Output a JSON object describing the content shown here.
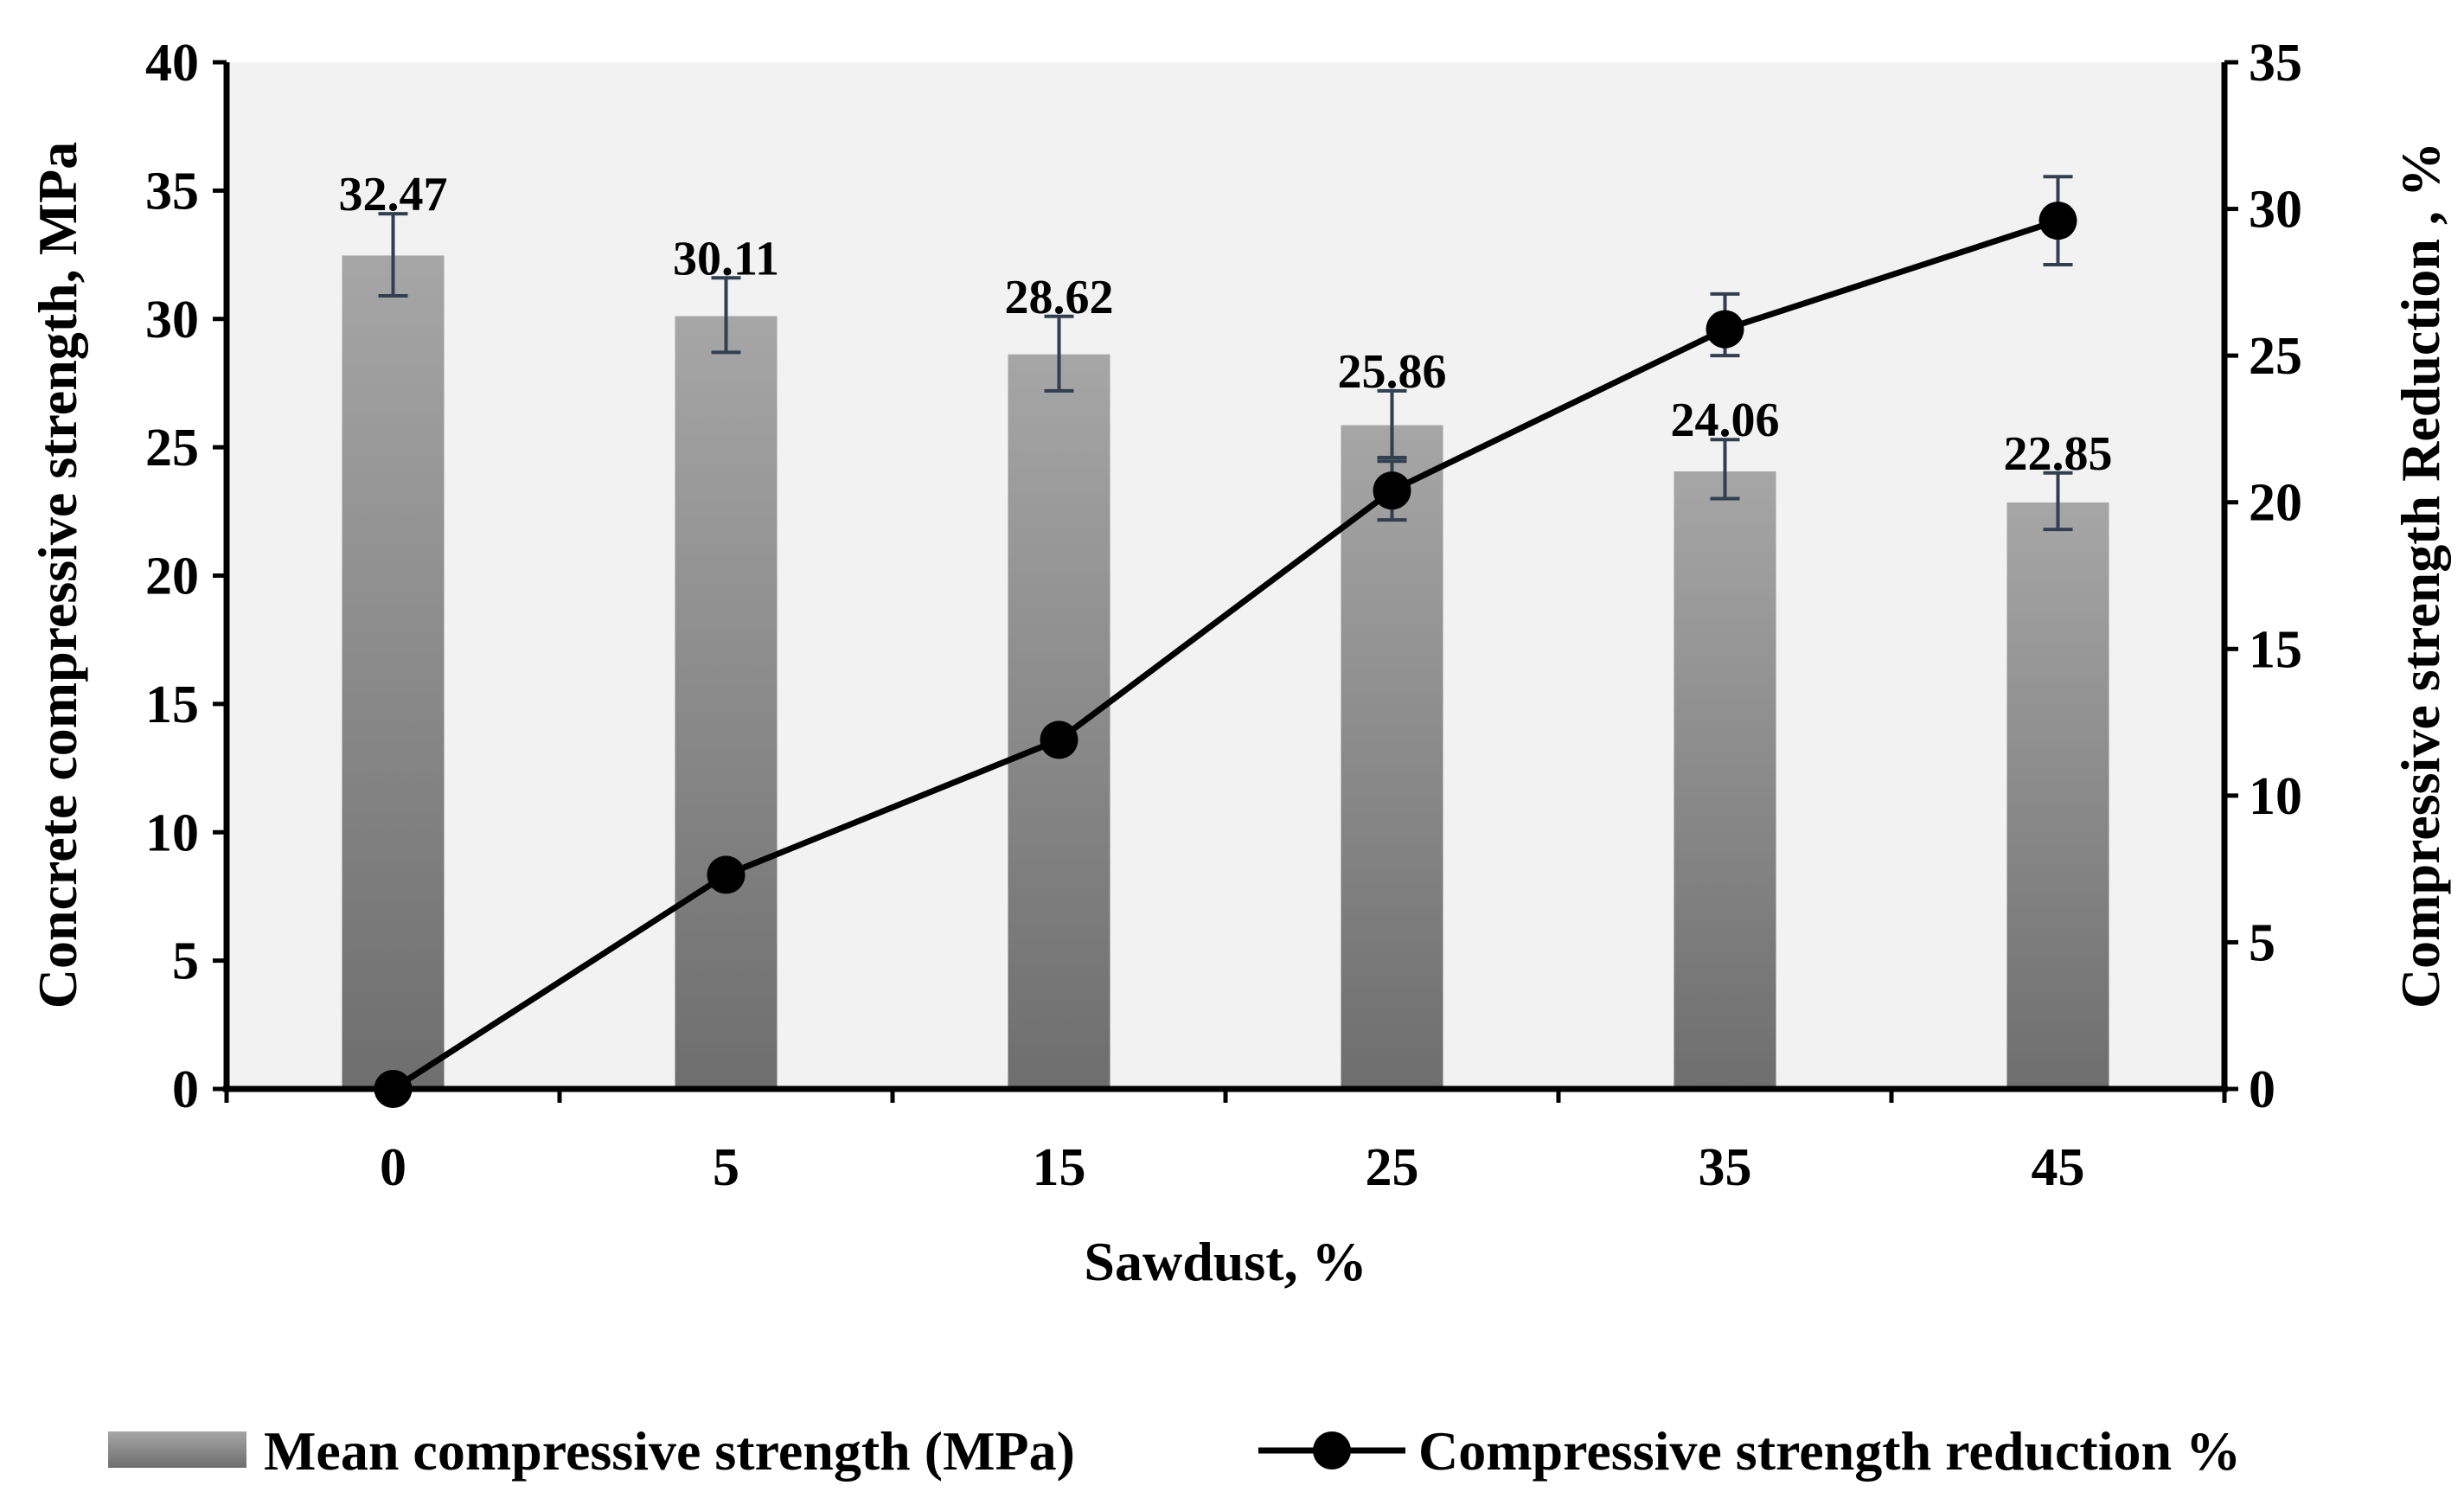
{
  "chart_data": {
    "type": "bar+line",
    "categories": [
      "0",
      "5",
      "15",
      "25",
      "35",
      "45"
    ],
    "xlabel": "Sawdust, %",
    "ylabel_left": "Concrete compressive strength, MPa",
    "ylabel_right": "Compressive strength Reduction , %",
    "ylim_left": [
      0,
      40
    ],
    "yticks_left": [
      "0",
      "5",
      "10",
      "15",
      "20",
      "25",
      "30",
      "35",
      "40"
    ],
    "ylim_right": [
      0,
      35
    ],
    "yticks_right": [
      "0",
      "5",
      "10",
      "15",
      "20",
      "25",
      "30",
      "35"
    ],
    "grid": false,
    "legend_position": "bottom",
    "series": [
      {
        "name": "Mean compressive strength (MPa)",
        "type": "bar",
        "axis": "left",
        "values": [
          32.47,
          30.11,
          28.62,
          25.86,
          24.06,
          22.85
        ],
        "labels": [
          "32.47",
          "30.11",
          "28.62",
          "25.86",
          "24.06",
          "22.85"
        ],
        "error_low": [
          30.9,
          28.7,
          27.2,
          24.6,
          23.0,
          21.8
        ],
        "error_high": [
          34.1,
          31.6,
          30.1,
          27.2,
          25.3,
          24.0
        ]
      },
      {
        "name": "Compressive strength reduction %",
        "type": "line",
        "axis": "right",
        "values": [
          0,
          7.3,
          11.9,
          20.4,
          25.9,
          29.6
        ],
        "error_low": [
          0,
          7.3,
          11.9,
          19.4,
          25.0,
          28.1
        ],
        "error_high": [
          0,
          7.3,
          11.9,
          21.4,
          27.1,
          31.1
        ]
      }
    ],
    "colors": {
      "plot_background": "#f2f2f2",
      "bar_top": "#a6a6a6",
      "bar_bottom": "#6e6e6e",
      "error_bar": "#333f50",
      "line": "#000000"
    }
  }
}
